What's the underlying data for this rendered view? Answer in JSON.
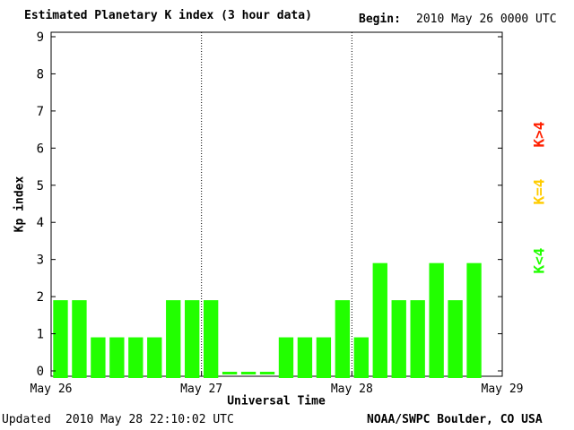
{
  "title": "Estimated Planetary K index (3 hour data)",
  "begin_label": "Begin:",
  "begin_value": "2010 May 26 0000 UTC",
  "updated_label": "Updated",
  "updated_value": "2010 May 28 22:10:02 UTC",
  "source": "NOAA/SWPC Boulder, CO USA",
  "legend": {
    "high": {
      "label": "K>4",
      "color": "#ff2000"
    },
    "equal": {
      "label": "K=4",
      "color": "#ffcc00"
    },
    "low": {
      "label": "K<4",
      "color": "#22ff00"
    }
  },
  "chart_data": {
    "type": "bar",
    "title": "Estimated Planetary K index (3 hour data)",
    "xlabel": "Universal Time",
    "ylabel": "Kp index",
    "ylim": [
      0,
      9
    ],
    "yticks": [
      "0",
      "1",
      "2",
      "3",
      "4",
      "5",
      "6",
      "7",
      "8",
      "9"
    ],
    "xticks": [
      "May 26",
      "May 27",
      "May 28",
      "May 29"
    ],
    "interval_hours": 3,
    "bar_color": "#22ff00",
    "grid": false,
    "day_dividers": "dotted",
    "values": [
      2,
      2,
      1,
      1,
      1,
      1,
      2,
      2,
      2,
      0,
      0,
      0,
      1,
      1,
      1,
      2,
      1,
      3,
      2,
      2,
      3,
      2,
      3
    ]
  }
}
